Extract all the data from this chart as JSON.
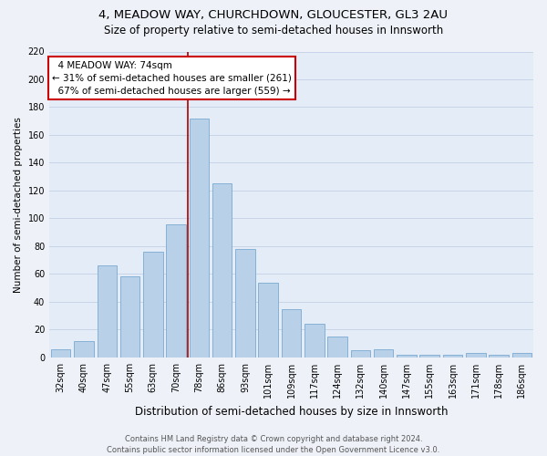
{
  "title": "4, MEADOW WAY, CHURCHDOWN, GLOUCESTER, GL3 2AU",
  "subtitle": "Size of property relative to semi-detached houses in Innsworth",
  "xlabel": "Distribution of semi-detached houses by size in Innsworth",
  "ylabel": "Number of semi-detached properties",
  "categories": [
    "32sqm",
    "40sqm",
    "47sqm",
    "55sqm",
    "63sqm",
    "70sqm",
    "78sqm",
    "86sqm",
    "93sqm",
    "101sqm",
    "109sqm",
    "117sqm",
    "124sqm",
    "132sqm",
    "140sqm",
    "147sqm",
    "155sqm",
    "163sqm",
    "171sqm",
    "178sqm",
    "186sqm"
  ],
  "values": [
    6,
    12,
    66,
    58,
    76,
    96,
    172,
    125,
    78,
    54,
    35,
    24,
    15,
    5,
    6,
    2,
    2,
    2,
    3,
    2,
    3
  ],
  "bar_color": "#b8d0e8",
  "bar_edge_color": "#7aaad0",
  "vline_color": "#aa0000",
  "annotation_box_color": "#ffffff",
  "annotation_box_edge": "#cc0000",
  "property_label": "4 MEADOW WAY: 74sqm",
  "smaller_pct": "31%",
  "smaller_n": 261,
  "larger_pct": "67%",
  "larger_n": 559,
  "ylim": [
    0,
    220
  ],
  "yticks": [
    0,
    20,
    40,
    60,
    80,
    100,
    120,
    140,
    160,
    180,
    200,
    220
  ],
  "grid_color": "#c8d4e8",
  "bg_color": "#e4ecf8",
  "fig_bg_color": "#eef2f8",
  "footer": "Contains HM Land Registry data © Crown copyright and database right 2024.\nContains public sector information licensed under the Open Government Licence v3.0.",
  "property_bin_index": 6,
  "title_fontsize": 9.5,
  "subtitle_fontsize": 8.5,
  "ylabel_fontsize": 7.5,
  "xlabel_fontsize": 8.5,
  "tick_fontsize": 7,
  "footer_fontsize": 6,
  "ann_fontsize": 7.5
}
